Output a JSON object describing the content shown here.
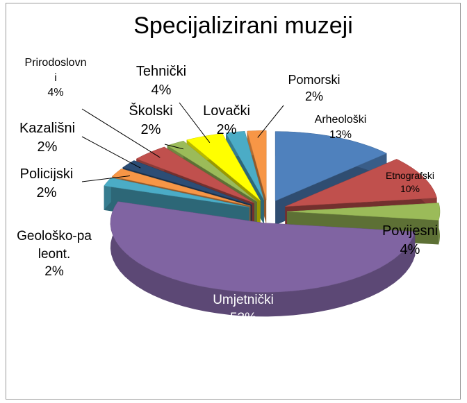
{
  "chart_data": {
    "type": "pie",
    "title": "Specijalizirani muzeji",
    "categories": [
      "Arheološki",
      "Etnografski",
      "Povijesni",
      "Umjetnički",
      "Geološko-paleont.",
      "Policijski",
      "Kazališni",
      "Prirodoslovni",
      "Školski",
      "Tehnički",
      "Lovački",
      "Pomorski"
    ],
    "values": [
      13,
      10,
      4,
      53,
      2,
      2,
      2,
      4,
      2,
      4,
      2,
      2
    ],
    "value_labels": [
      "13%",
      "10%",
      "4%",
      "53%",
      "2%",
      "2%",
      "2%",
      "4%",
      "2%",
      "4%",
      "2%",
      "2%"
    ],
    "colors": [
      "#4f81bd",
      "#c0504d",
      "#9bbb59",
      "#8064a2",
      "#4bacc6",
      "#f79646",
      "#2c4d75",
      "#c0504d",
      "#9bbb59",
      "#ffff00",
      "#4bacc6",
      "#f79646"
    ]
  }
}
